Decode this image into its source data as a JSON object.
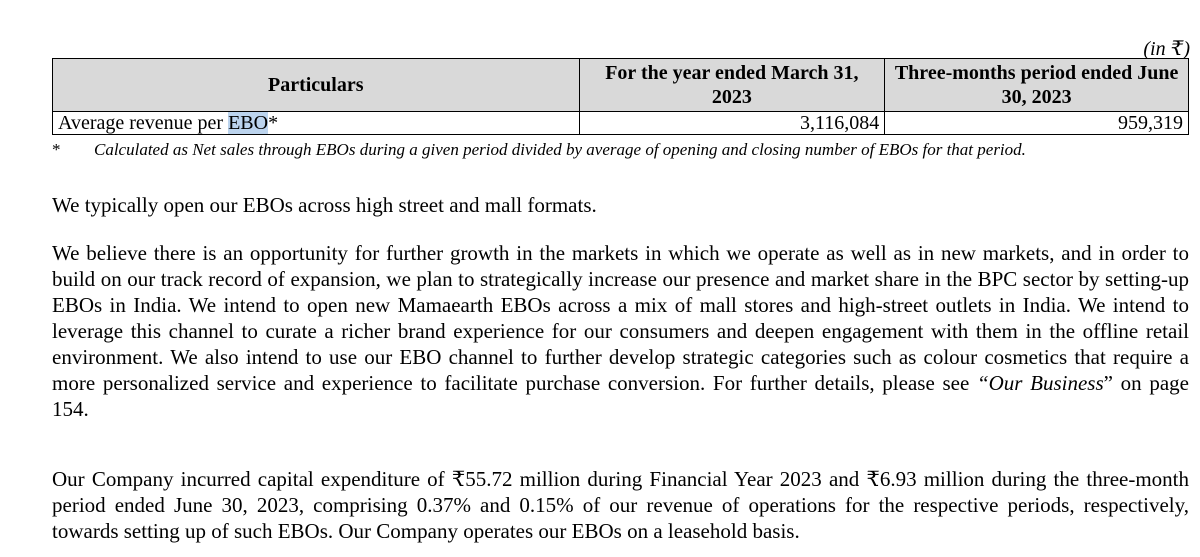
{
  "unit_note": "(in ₹)",
  "table": {
    "headers": [
      "Particulars",
      "For the year ended March 31, 2023",
      "Three-months period ended June 30, 2023"
    ],
    "row": {
      "label_prefix": "Average revenue per ",
      "label_highlight": "EBO",
      "label_suffix": "*",
      "fy2023": "3,116,084",
      "q1_2024": "959,319"
    }
  },
  "footnote": {
    "marker": "*",
    "text": "Calculated as Net sales through EBOs during a given period divided by average of opening and closing number of EBOs for that period."
  },
  "paragraphs": {
    "p1": "We typically open our EBOs across high street and mall formats.",
    "p2_before": "We believe there is an opportunity for further growth in the markets in which we operate as well as in new markets, and in order to build on our track record of expansion, we plan to strategically increase our presence and market share in the BPC sector by setting-up EBOs in India. We intend to open new Mamaearth EBOs across a mix of mall stores and high-street outlets in India. We intend to leverage this channel to curate a richer brand experience for our consumers and deepen engagement with them in the offline retail environment. We also intend to use our EBO channel to further develop strategic categories such as colour cosmetics that require a more personalized service and experience to facilitate purchase conversion. For further details, please see ",
    "p2_link": "“Our Business",
    "p2_after": "” on page 154.",
    "p3": "Our Company incurred capital expenditure of ₹55.72 million during Financial Year 2023 and ₹6.93 million during the three-month period ended June 30, 2023, comprising 0.37% and 0.15% of our revenue of operations for the respective periods, respectively, towards setting up of such EBOs. Our Company operates our EBOs on a leasehold basis."
  }
}
